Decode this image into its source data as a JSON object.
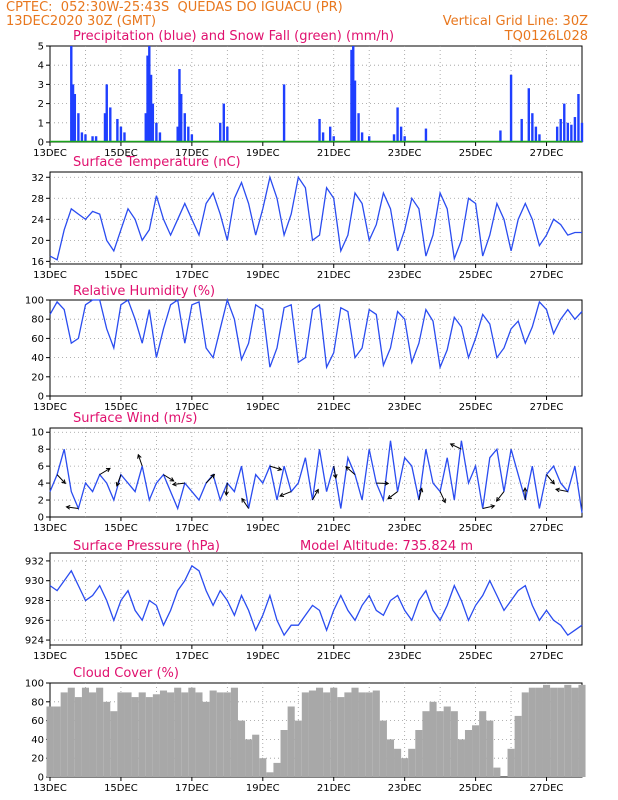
{
  "header": {
    "line1_left": "CPTEC:  052:30W-25:43S  QUEDAS DO IGUACU (PR)",
    "line2_left": "13DEC2020 30Z (GMT)",
    "line2_right": "Vertical Grid Line: 30Z",
    "line3_right": "TQ0126L028"
  },
  "panels": [
    {
      "key": "precip",
      "title": "Precipitation (blue) and Snow Fall (green) (mm/h)",
      "extra": ""
    },
    {
      "key": "temp",
      "title": "Surface Temperature (nC)",
      "extra": ""
    },
    {
      "key": "rh",
      "title": "Relative Humidity (%)",
      "extra": ""
    },
    {
      "key": "wind",
      "title": "Surface Wind (m/s)",
      "extra": ""
    },
    {
      "key": "pres",
      "title": "Surface Pressure (hPa)",
      "extra": "Model Altitude: 735.824 m"
    },
    {
      "key": "cloud",
      "title": "Cloud Cover (%)",
      "extra": ""
    }
  ],
  "chart_data": [
    {
      "type": "bar",
      "title": "Precipitation (blue) and Snow Fall (green) (mm/h)",
      "x_tick_labels": [
        "13DEC",
        "15DEC",
        "17DEC",
        "19DEC",
        "21DEC",
        "23DEC",
        "25DEC",
        "27DEC"
      ],
      "ylim": [
        0,
        5
      ],
      "y_ticks": [
        0,
        1,
        2,
        3,
        4,
        5
      ],
      "series": [
        {
          "name": "precipitation",
          "color": "#1f3fff",
          "x_day": [
            13.6,
            13.65,
            13.7,
            13.8,
            13.9,
            14.0,
            14.2,
            14.3,
            14.55,
            14.6,
            14.7,
            14.9,
            15.0,
            15.1,
            15.7,
            15.75,
            15.8,
            15.85,
            15.9,
            16.0,
            16.1,
            16.6,
            16.65,
            16.7,
            16.8,
            16.9,
            17.0,
            17.8,
            17.9,
            18.0,
            19.6,
            20.6,
            20.7,
            20.9,
            21.0,
            21.5,
            21.55,
            21.6,
            21.7,
            21.8,
            22.0,
            22.7,
            22.8,
            22.9,
            23.0,
            23.6,
            25.7,
            26.0,
            26.3,
            26.5,
            26.6,
            26.7,
            26.8,
            27.3,
            27.4,
            27.5,
            27.6,
            27.7,
            27.8,
            27.9,
            28.0
          ],
          "values": [
            5.0,
            3.0,
            2.5,
            1.5,
            0.5,
            0.4,
            0.3,
            0.3,
            1.5,
            3.0,
            1.8,
            1.2,
            0.8,
            0.5,
            1.5,
            4.5,
            5.0,
            3.5,
            2.0,
            1.0,
            0.5,
            0.8,
            3.8,
            2.5,
            1.5,
            0.8,
            0.4,
            1.0,
            2.0,
            0.8,
            3.0,
            1.2,
            0.5,
            0.8,
            0.3,
            4.8,
            5.0,
            3.2,
            1.5,
            0.5,
            0.3,
            0.4,
            1.8,
            0.8,
            0.3,
            0.7,
            0.6,
            3.5,
            1.2,
            2.8,
            1.5,
            0.8,
            0.4,
            0.8,
            1.2,
            2.0,
            1.0,
            0.9,
            1.3,
            2.5,
            1.0
          ]
        },
        {
          "name": "snow fall",
          "color": "#1aa31a",
          "x_day": [
            13.0,
            28.0
          ],
          "values": [
            0,
            0
          ]
        }
      ]
    },
    {
      "type": "line",
      "title": "Surface Temperature (nC)",
      "x_tick_labels": [
        "13DEC",
        "15DEC",
        "17DEC",
        "19DEC",
        "21DEC",
        "23DEC",
        "25DEC",
        "27DEC"
      ],
      "ylim": [
        15.5,
        33
      ],
      "y_ticks": [
        16,
        20,
        24,
        28,
        32
      ],
      "series": [
        {
          "name": "temperature",
          "color": "#2a4cf0",
          "x_day": [
            13.0,
            13.2,
            13.4,
            13.6,
            13.8,
            14.0,
            14.2,
            14.4,
            14.6,
            14.8,
            15.0,
            15.2,
            15.4,
            15.6,
            15.8,
            16.0,
            16.2,
            16.4,
            16.6,
            16.8,
            17.0,
            17.2,
            17.4,
            17.6,
            17.8,
            18.0,
            18.2,
            18.4,
            18.6,
            18.8,
            19.0,
            19.2,
            19.4,
            19.6,
            19.8,
            20.0,
            20.2,
            20.4,
            20.6,
            20.8,
            21.0,
            21.2,
            21.4,
            21.6,
            21.8,
            22.0,
            22.2,
            22.4,
            22.6,
            22.8,
            23.0,
            23.2,
            23.4,
            23.6,
            23.8,
            24.0,
            24.2,
            24.4,
            24.6,
            24.8,
            25.0,
            25.2,
            25.4,
            25.6,
            25.8,
            26.0,
            26.2,
            26.4,
            26.6,
            26.8,
            27.0,
            27.2,
            27.4,
            27.6,
            27.8,
            28.0
          ],
          "values": [
            17,
            16.3,
            22,
            26,
            25,
            24,
            25.5,
            25,
            20,
            18,
            22,
            26,
            24,
            20,
            22,
            28.5,
            24,
            21,
            24,
            27,
            24,
            21,
            27,
            29,
            25,
            20,
            28,
            31,
            27,
            21,
            26,
            32,
            28,
            21,
            25,
            32,
            30,
            20,
            21,
            30,
            28,
            18,
            21,
            29,
            27,
            20,
            23,
            29,
            26,
            18,
            22,
            28,
            26,
            17,
            21,
            29,
            26,
            16.5,
            20,
            28,
            27,
            17,
            21,
            27,
            24,
            18,
            24,
            27,
            24,
            19,
            21,
            24,
            23,
            21,
            21.5,
            21.5
          ]
        }
      ]
    },
    {
      "type": "line",
      "title": "Relative Humidity (%)",
      "x_tick_labels": [
        "13DEC",
        "15DEC",
        "17DEC",
        "19DEC",
        "21DEC",
        "23DEC",
        "25DEC",
        "27DEC"
      ],
      "ylim": [
        0,
        100
      ],
      "y_ticks": [
        0,
        20,
        40,
        60,
        80,
        100
      ],
      "series": [
        {
          "name": "relative humidity",
          "color": "#2a4cf0",
          "x_day": [
            13.0,
            13.2,
            13.4,
            13.6,
            13.8,
            14.0,
            14.2,
            14.4,
            14.6,
            14.8,
            15.0,
            15.2,
            15.4,
            15.6,
            15.8,
            16.0,
            16.2,
            16.4,
            16.6,
            16.8,
            17.0,
            17.2,
            17.4,
            17.6,
            17.8,
            18.0,
            18.2,
            18.4,
            18.6,
            18.8,
            19.0,
            19.2,
            19.4,
            19.6,
            19.8,
            20.0,
            20.2,
            20.4,
            20.6,
            20.8,
            21.0,
            21.2,
            21.4,
            21.6,
            21.8,
            22.0,
            22.2,
            22.4,
            22.6,
            22.8,
            23.0,
            23.2,
            23.4,
            23.6,
            23.8,
            24.0,
            24.2,
            24.4,
            24.6,
            24.8,
            25.0,
            25.2,
            25.4,
            25.6,
            25.8,
            26.0,
            26.2,
            26.4,
            26.6,
            26.8,
            27.0,
            27.2,
            27.4,
            27.6,
            27.8,
            28.0
          ],
          "values": [
            85,
            98,
            90,
            55,
            60,
            95,
            100,
            100,
            70,
            50,
            95,
            100,
            80,
            55,
            90,
            40,
            70,
            95,
            100,
            55,
            95,
            98,
            50,
            40,
            70,
            100,
            80,
            38,
            55,
            95,
            90,
            30,
            50,
            92,
            95,
            35,
            40,
            90,
            95,
            30,
            45,
            92,
            88,
            40,
            50,
            90,
            85,
            32,
            50,
            88,
            80,
            35,
            55,
            90,
            78,
            30,
            48,
            82,
            72,
            40,
            60,
            85,
            75,
            40,
            50,
            70,
            78,
            55,
            72,
            98,
            90,
            65,
            80,
            90,
            80,
            88
          ]
        }
      ]
    },
    {
      "type": "line",
      "title": "Surface Wind (m/s)",
      "x_tick_labels": [
        "13DEC",
        "15DEC",
        "17DEC",
        "19DEC",
        "21DEC",
        "23DEC",
        "25DEC",
        "27DEC"
      ],
      "ylim": [
        0,
        10.5
      ],
      "y_ticks": [
        0,
        2,
        4,
        6,
        8,
        10
      ],
      "series": [
        {
          "name": "wind speed",
          "color": "#2a4cf0",
          "x_day": [
            13.0,
            13.2,
            13.4,
            13.6,
            13.8,
            14.0,
            14.2,
            14.4,
            14.6,
            14.8,
            15.0,
            15.2,
            15.4,
            15.6,
            15.8,
            16.0,
            16.2,
            16.4,
            16.6,
            16.8,
            17.0,
            17.2,
            17.4,
            17.6,
            17.8,
            18.0,
            18.2,
            18.4,
            18.6,
            18.8,
            19.0,
            19.2,
            19.4,
            19.6,
            19.8,
            20.0,
            20.2,
            20.4,
            20.6,
            20.8,
            21.0,
            21.2,
            21.4,
            21.6,
            21.8,
            22.0,
            22.2,
            22.4,
            22.6,
            22.8,
            23.0,
            23.2,
            23.4,
            23.6,
            23.8,
            24.0,
            24.2,
            24.4,
            24.6,
            24.8,
            25.0,
            25.2,
            25.4,
            25.6,
            25.8,
            26.0,
            26.2,
            26.4,
            26.6,
            26.8,
            27.0,
            27.2,
            27.4,
            27.6,
            27.8,
            28.0
          ],
          "values": [
            3,
            5,
            8,
            3,
            1,
            4,
            3,
            5,
            4,
            2,
            5,
            4,
            3,
            6,
            2,
            4,
            5,
            3,
            1,
            4,
            3,
            2,
            4,
            5,
            2,
            4,
            3,
            6,
            1,
            5,
            4,
            6,
            2,
            6,
            3,
            4,
            7,
            2,
            8,
            3,
            6,
            1,
            7,
            5,
            2,
            8,
            4,
            2,
            9,
            3,
            7,
            6,
            2,
            8,
            4,
            3,
            7,
            2,
            9,
            4,
            6,
            1,
            7,
            8,
            3,
            8,
            5,
            2,
            6,
            1,
            5,
            6,
            4,
            3,
            6,
            0.5
          ]
        }
      ],
      "direction_arrows_shown": true
    },
    {
      "type": "line",
      "title": "Surface Pressure (hPa)",
      "annotation": "Model Altitude: 735.824 m",
      "x_tick_labels": [
        "13DEC",
        "15DEC",
        "17DEC",
        "19DEC",
        "21DEC",
        "23DEC",
        "25DEC",
        "27DEC"
      ],
      "ylim": [
        923.5,
        932.8
      ],
      "y_ticks": [
        924,
        926,
        928,
        930,
        932
      ],
      "series": [
        {
          "name": "pressure",
          "color": "#2a4cf0",
          "x_day": [
            13.0,
            13.2,
            13.4,
            13.6,
            13.8,
            14.0,
            14.2,
            14.4,
            14.6,
            14.8,
            15.0,
            15.2,
            15.4,
            15.6,
            15.8,
            16.0,
            16.2,
            16.4,
            16.6,
            16.8,
            17.0,
            17.2,
            17.4,
            17.6,
            17.8,
            18.0,
            18.2,
            18.4,
            18.6,
            18.8,
            19.0,
            19.2,
            19.4,
            19.6,
            19.8,
            20.0,
            20.2,
            20.4,
            20.6,
            20.8,
            21.0,
            21.2,
            21.4,
            21.6,
            21.8,
            22.0,
            22.2,
            22.4,
            22.6,
            22.8,
            23.0,
            23.2,
            23.4,
            23.6,
            23.8,
            24.0,
            24.2,
            24.4,
            24.6,
            24.8,
            25.0,
            25.2,
            25.4,
            25.6,
            25.8,
            26.0,
            26.2,
            26.4,
            26.6,
            26.8,
            27.0,
            27.2,
            27.4,
            27.6,
            27.8,
            28.0
          ],
          "values": [
            929.5,
            929,
            930,
            931,
            929.5,
            928,
            928.5,
            929.5,
            928,
            926,
            928,
            929,
            927,
            926,
            928,
            927.5,
            925.5,
            927,
            929,
            930,
            931.5,
            931,
            929,
            927.5,
            929,
            928,
            926.5,
            928.5,
            927,
            925,
            926.5,
            928.5,
            926,
            924.5,
            925.5,
            925.5,
            926.5,
            927.5,
            927,
            925,
            927,
            928.5,
            927,
            926,
            927.5,
            928.5,
            927,
            926.5,
            928,
            928.5,
            927,
            926,
            928,
            929,
            927,
            926,
            927.5,
            929.5,
            928,
            926,
            927.5,
            928.5,
            930,
            928.5,
            927,
            928,
            929,
            929.5,
            927.5,
            926,
            927,
            926,
            925.5,
            924.5,
            925,
            925.5
          ]
        }
      ]
    },
    {
      "type": "bar",
      "title": "Cloud Cover (%)",
      "x_tick_labels": [
        "13DEC",
        "15DEC",
        "17DEC",
        "19DEC",
        "21DEC",
        "23DEC",
        "25DEC",
        "27DEC"
      ],
      "ylim": [
        0,
        100
      ],
      "y_ticks": [
        0,
        20,
        40,
        60,
        80,
        100
      ],
      "series": [
        {
          "name": "cloud cover",
          "color": "#a8a8a8",
          "x_day": [
            13.0,
            13.2,
            13.4,
            13.6,
            13.8,
            14.0,
            14.2,
            14.4,
            14.6,
            14.8,
            15.0,
            15.2,
            15.4,
            15.6,
            15.8,
            16.0,
            16.2,
            16.4,
            16.6,
            16.8,
            17.0,
            17.2,
            17.4,
            17.6,
            17.8,
            18.0,
            18.2,
            18.4,
            18.6,
            18.8,
            19.0,
            19.2,
            19.4,
            19.6,
            19.8,
            20.0,
            20.2,
            20.4,
            20.6,
            20.8,
            21.0,
            21.2,
            21.4,
            21.6,
            21.8,
            22.0,
            22.2,
            22.4,
            22.6,
            22.8,
            23.0,
            23.2,
            23.4,
            23.6,
            23.8,
            24.0,
            24.2,
            24.4,
            24.6,
            24.8,
            25.0,
            25.2,
            25.4,
            25.6,
            25.8,
            26.0,
            26.2,
            26.4,
            26.6,
            26.8,
            27.0,
            27.2,
            27.4,
            27.6,
            27.8,
            28.0
          ],
          "values": [
            75,
            75,
            90,
            95,
            85,
            95,
            90,
            95,
            80,
            70,
            90,
            90,
            85,
            90,
            85,
            88,
            92,
            90,
            95,
            90,
            95,
            90,
            80,
            92,
            90,
            90,
            95,
            60,
            40,
            45,
            20,
            5,
            15,
            50,
            75,
            60,
            90,
            92,
            95,
            90,
            95,
            85,
            90,
            95,
            90,
            90,
            92,
            60,
            40,
            30,
            20,
            30,
            50,
            70,
            80,
            70,
            75,
            70,
            40,
            50,
            55,
            70,
            60,
            10,
            0,
            30,
            65,
            90,
            95,
            95,
            98,
            95,
            95,
            98,
            95,
            98
          ]
        }
      ]
    }
  ]
}
